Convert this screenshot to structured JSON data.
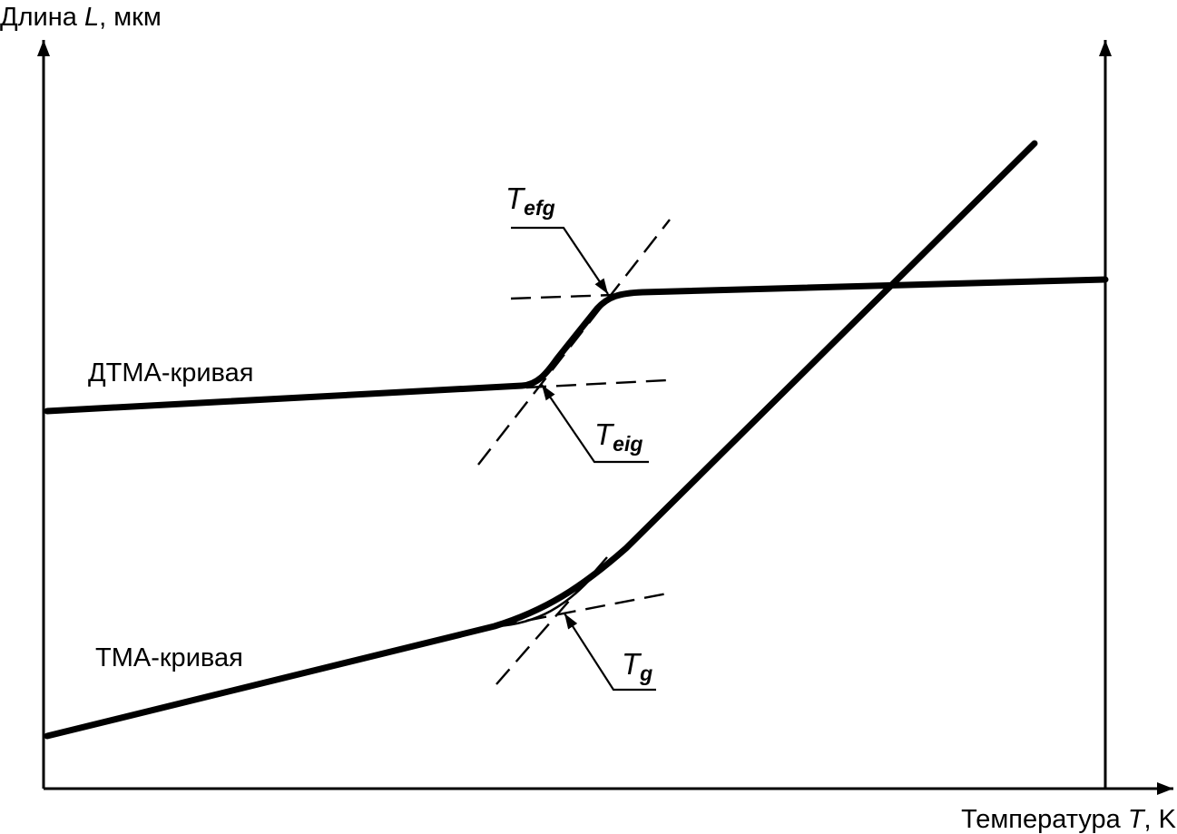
{
  "axes": {
    "y_title_prefix": "Длина ",
    "y_title_var": "L",
    "y_title_suffix": ", мкм",
    "x_title_prefix": "Температура ",
    "x_title_var": "T",
    "x_title_suffix": ", K"
  },
  "curves": {
    "dtma_label": "ДТМА-кривая",
    "tma_label": "ТМА-кривая"
  },
  "annotations": {
    "t_efg": {
      "main": "T",
      "sub": "efg"
    },
    "t_eig": {
      "main": "T",
      "sub": "eig"
    },
    "t_g": {
      "main": "T",
      "sub": "g"
    }
  }
}
